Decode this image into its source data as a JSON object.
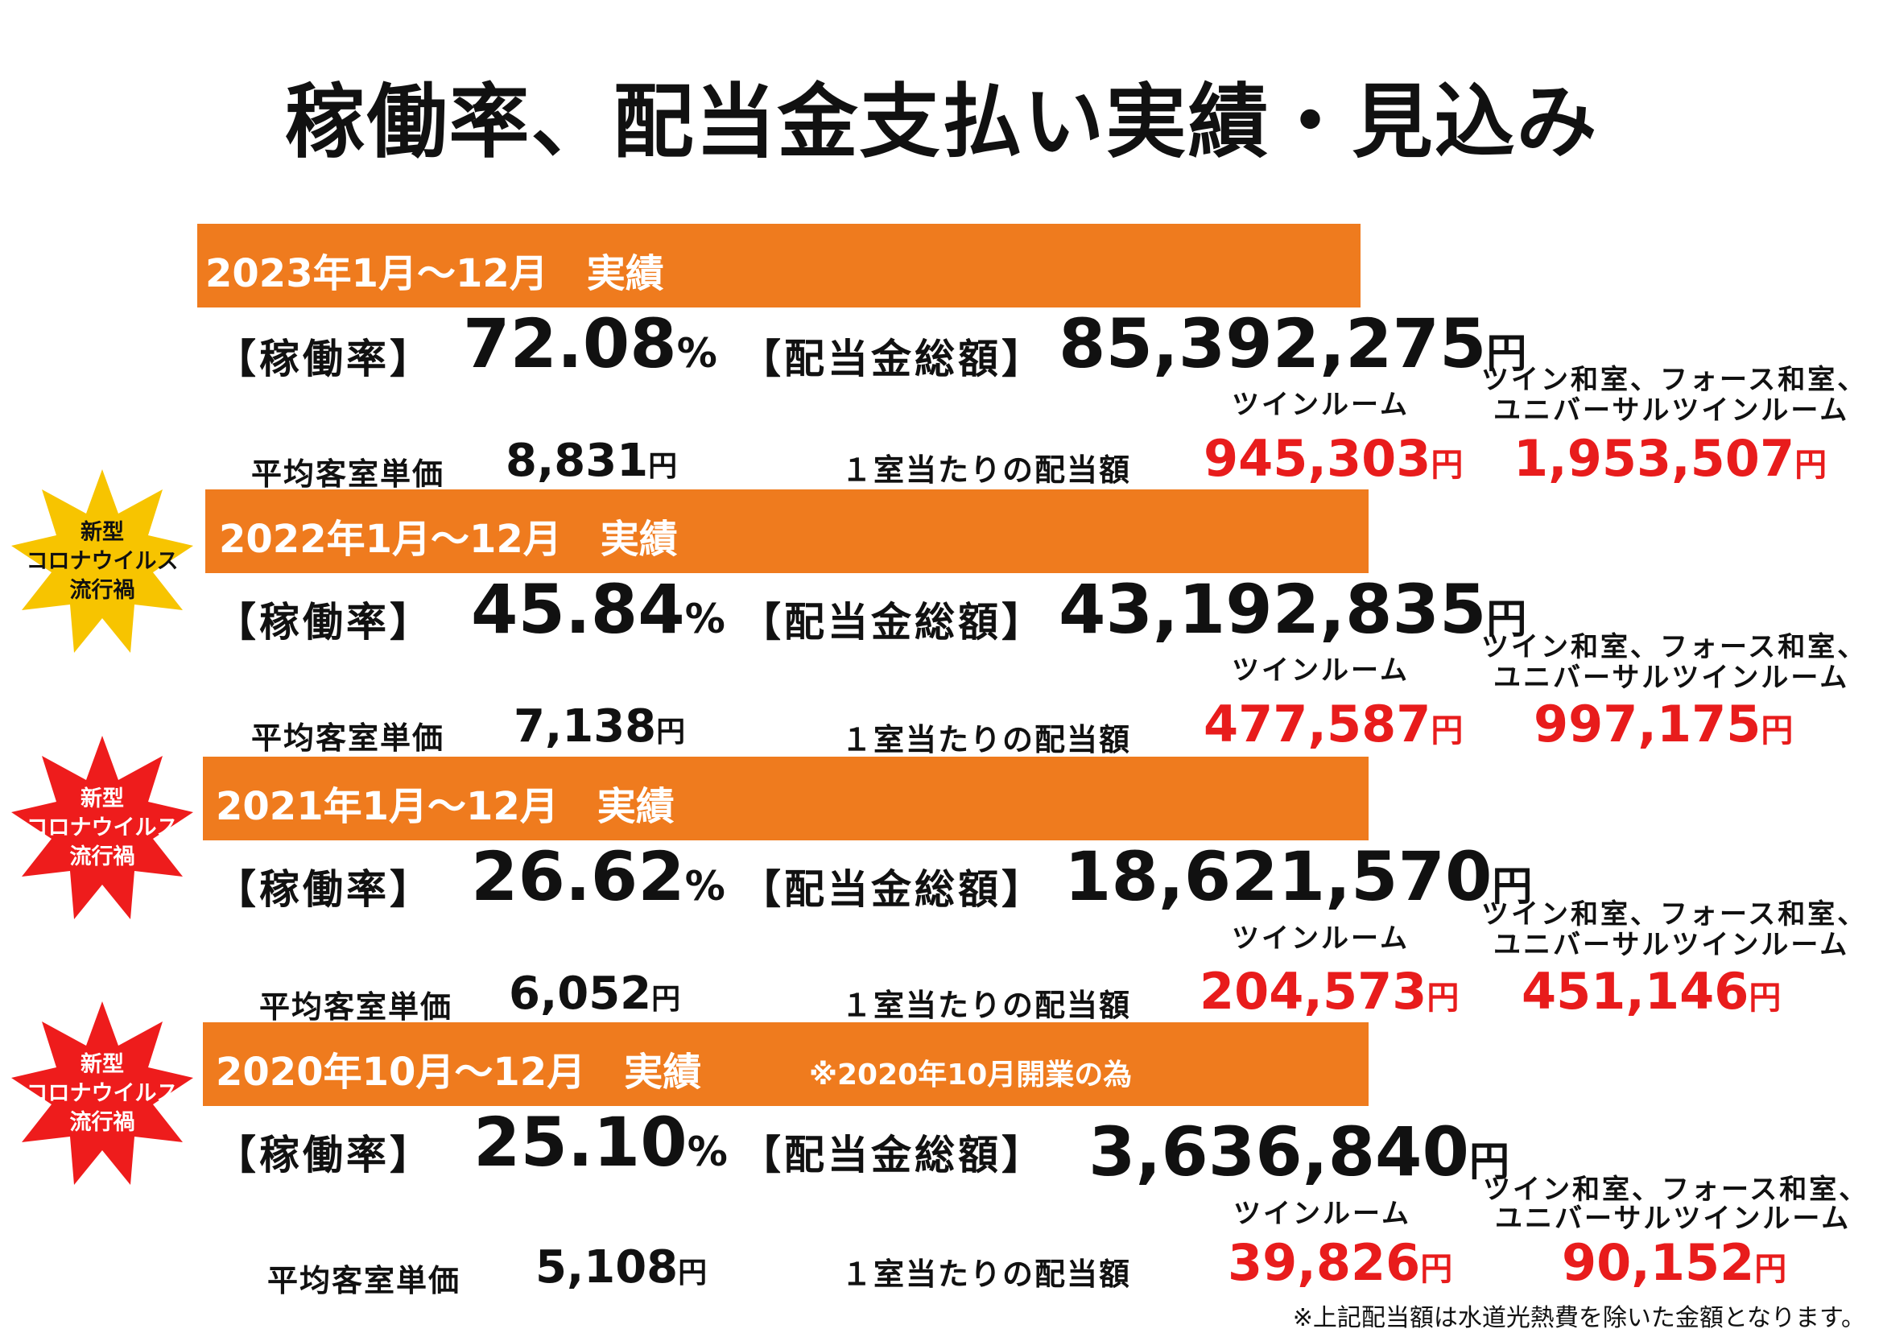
{
  "title": "稼働率、配当金支払い実績・見込み",
  "common": {
    "occupancy_label": "【稼働率】",
    "dividend_total_label": "【配当金総額】",
    "yen": "円",
    "percent": "%",
    "avg_rate_label": "平均客室単価",
    "per_room_label": "１室当たりの配当額",
    "room_type_twin": "ツインルーム",
    "room_type_other_line1": "ツイン和室、フォース和室、",
    "room_type_other_line2": "ユニバーサルツインルーム"
  },
  "badge": {
    "line1": "新型",
    "line2": "コロナウイルス",
    "line3": "流行禍"
  },
  "badge_colors": {
    "yellow": "#f7c400",
    "red": "#ee1c1c",
    "band": "#ef7b1e",
    "accent_red": "#e81c1c"
  },
  "sections": [
    {
      "period": "2023年1月～12月　実績",
      "note": "",
      "occupancy": "72.08",
      "dividend_total": "85,392,275",
      "avg_rate": "8,831",
      "per_room_twin": "945,303",
      "per_room_other": "1,953,507"
    },
    {
      "period": "2022年1月～12月　実績",
      "note": "",
      "occupancy": "45.84",
      "dividend_total": "43,192,835",
      "avg_rate": "7,138",
      "per_room_twin": "477,587",
      "per_room_other": "997,175"
    },
    {
      "period": "2021年1月～12月　実績",
      "note": "",
      "occupancy": "26.62",
      "dividend_total": "18,621,570",
      "avg_rate": "6,052",
      "per_room_twin": "204,573",
      "per_room_other": "451,146"
    },
    {
      "period": "2020年10月～12月　実績",
      "note": "※2020年10月開業の為",
      "occupancy": "25.10",
      "dividend_total": "3,636,840",
      "avg_rate": "5,108",
      "per_room_twin": "39,826",
      "per_room_other": "90,152"
    }
  ],
  "footnote": "※上記配当額は水道光熱費を除いた金額となります。"
}
